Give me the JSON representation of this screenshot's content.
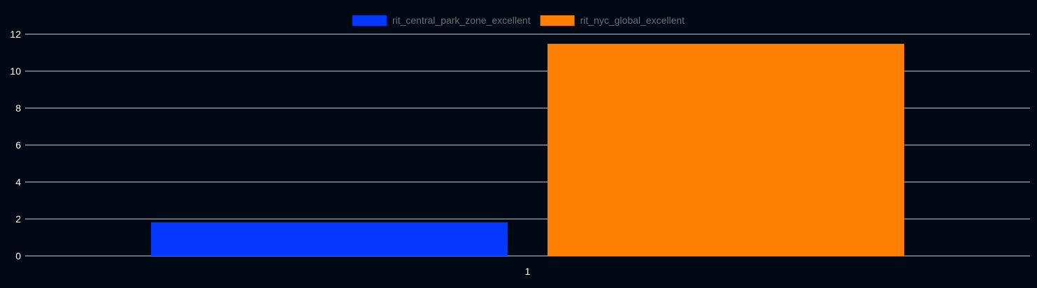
{
  "chart_data": {
    "type": "bar",
    "categories": [
      "1"
    ],
    "series": [
      {
        "name": "rit_central_park_zone_excellent",
        "values": [
          1.82
        ],
        "color": "#0438ff"
      },
      {
        "name": "rit_nyc_global_excellent",
        "values": [
          11.48
        ],
        "color": "#ff7f00"
      }
    ],
    "ylim": [
      0,
      12
    ],
    "yticks": [
      0,
      2,
      4,
      6,
      8,
      10,
      12
    ],
    "grid": true,
    "legend": "top-center",
    "title": "",
    "xlabel": "",
    "ylabel": ""
  },
  "colors": {
    "background": "#010a14",
    "grid": "#c9cfd8",
    "tick_text": "#ffffff",
    "legend_text": "#6b6f76"
  }
}
